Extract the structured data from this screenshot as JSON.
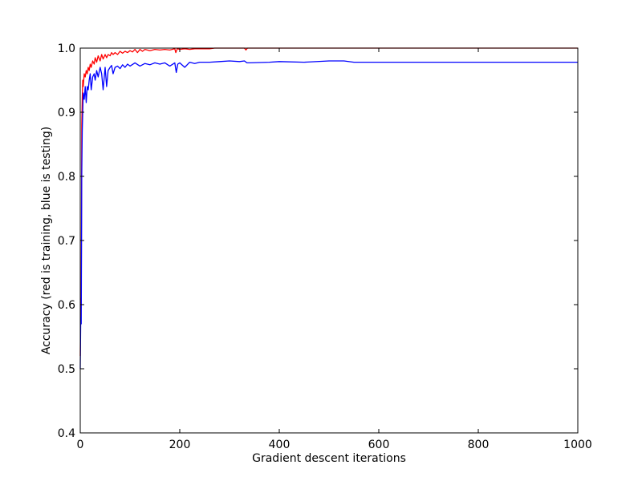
{
  "chart_data": {
    "type": "line",
    "title": "",
    "xlabel": "Gradient descent iterations",
    "ylabel": "Accuracy (red is training, blue is testing)",
    "xlim": [
      0,
      1000
    ],
    "ylim": [
      0.4,
      1.0
    ],
    "x_ticks": [
      0,
      200,
      400,
      600,
      800,
      1000
    ],
    "y_ticks": [
      0.4,
      0.5,
      0.6,
      0.7,
      0.8,
      0.9,
      1.0
    ],
    "x_tick_labels": [
      "0",
      "200",
      "400",
      "600",
      "800",
      "1000"
    ],
    "y_tick_labels": [
      "0.4",
      "0.5",
      "0.6",
      "0.7",
      "0.8",
      "0.9",
      "1.0"
    ],
    "grid": false,
    "legend": "none",
    "series": [
      {
        "color": "#ff0000",
        "x": [
          0,
          1,
          2,
          3,
          4,
          5,
          6,
          8,
          10,
          12,
          14,
          16,
          18,
          20,
          22,
          25,
          28,
          30,
          33,
          36,
          40,
          43,
          46,
          50,
          53,
          56,
          60,
          63,
          66,
          70,
          75,
          80,
          85,
          90,
          95,
          100,
          105,
          110,
          115,
          120,
          125,
          130,
          140,
          150,
          160,
          170,
          180,
          190,
          192,
          195,
          200,
          210,
          220,
          230,
          240,
          250,
          260,
          270,
          300,
          330,
          333,
          336,
          350,
          400,
          450,
          500,
          550,
          600,
          700,
          800,
          900,
          1000
        ],
        "y": [
          0.52,
          0.61,
          0.6,
          0.88,
          0.92,
          0.95,
          0.94,
          0.96,
          0.955,
          0.965,
          0.96,
          0.97,
          0.965,
          0.975,
          0.97,
          0.98,
          0.975,
          0.985,
          0.978,
          0.988,
          0.98,
          0.99,
          0.983,
          0.99,
          0.985,
          0.99,
          0.988,
          0.993,
          0.99,
          0.993,
          0.99,
          0.995,
          0.992,
          0.995,
          0.993,
          0.996,
          0.994,
          0.998,
          0.993,
          0.998,
          0.995,
          0.998,
          0.996,
          0.998,
          0.997,
          0.998,
          0.997,
          0.999,
          0.993,
          0.999,
          0.998,
          0.999,
          0.998,
          0.999,
          0.999,
          0.999,
          0.999,
          1.0,
          1.0,
          1.0,
          0.997,
          1.0,
          1.0,
          1.0,
          1.0,
          1.0,
          1.0,
          1.0,
          1.0,
          1.0,
          1.0,
          1.0
        ]
      },
      {
        "color": "#0000ff",
        "x": [
          0,
          1,
          2,
          3,
          4,
          5,
          6,
          8,
          10,
          12,
          14,
          16,
          18,
          20,
          22,
          25,
          28,
          30,
          33,
          36,
          40,
          43,
          46,
          50,
          53,
          56,
          60,
          63,
          66,
          70,
          75,
          80,
          85,
          90,
          95,
          100,
          110,
          120,
          130,
          140,
          150,
          160,
          170,
          180,
          190,
          193,
          196,
          200,
          210,
          220,
          230,
          240,
          260,
          280,
          300,
          320,
          330,
          335,
          340,
          380,
          400,
          450,
          500,
          530,
          550,
          600,
          700,
          800,
          900,
          1000
        ],
        "y": [
          0.5,
          0.58,
          0.57,
          0.8,
          0.87,
          0.9,
          0.93,
          0.92,
          0.94,
          0.915,
          0.94,
          0.935,
          0.95,
          0.96,
          0.935,
          0.955,
          0.96,
          0.95,
          0.965,
          0.955,
          0.97,
          0.96,
          0.935,
          0.97,
          0.94,
          0.965,
          0.97,
          0.973,
          0.96,
          0.97,
          0.972,
          0.968,
          0.974,
          0.97,
          0.975,
          0.972,
          0.977,
          0.972,
          0.976,
          0.974,
          0.977,
          0.975,
          0.977,
          0.972,
          0.977,
          0.962,
          0.975,
          0.977,
          0.97,
          0.978,
          0.976,
          0.978,
          0.978,
          0.979,
          0.98,
          0.979,
          0.98,
          0.977,
          0.977,
          0.978,
          0.979,
          0.978,
          0.98,
          0.98,
          0.978,
          0.978,
          0.978,
          0.978,
          0.978,
          0.978
        ]
      }
    ]
  }
}
